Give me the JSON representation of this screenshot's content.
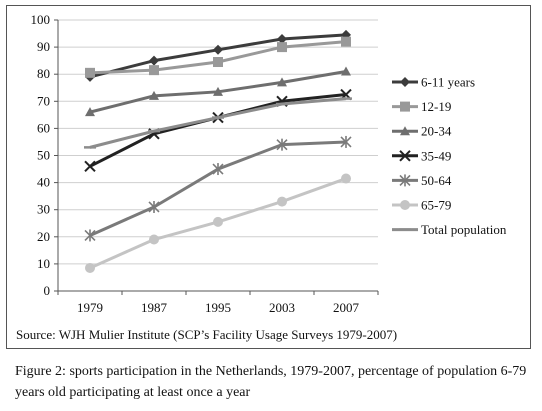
{
  "chart_data": {
    "type": "line",
    "x": [
      "1979",
      "1987",
      "1995",
      "2003",
      "2007"
    ],
    "ylim": [
      0,
      100
    ],
    "yticks": [
      "0",
      "10",
      "20",
      "30",
      "40",
      "50",
      "60",
      "70",
      "80",
      "90",
      "100"
    ],
    "grid": true,
    "legend_position": "right",
    "series": [
      {
        "name": "6-11 years",
        "values": [
          79,
          85,
          89,
          93,
          94.5
        ],
        "color": "#3c3c3c",
        "marker": "diamond"
      },
      {
        "name": "12-19",
        "values": [
          80.5,
          81.5,
          84.5,
          90,
          92
        ],
        "color": "#999999",
        "marker": "square"
      },
      {
        "name": "20-34",
        "values": [
          66,
          72,
          73.5,
          77,
          81
        ],
        "color": "#6e6e6e",
        "marker": "triangle"
      },
      {
        "name": "35-49",
        "values": [
          46,
          58,
          64,
          70,
          72.5
        ],
        "color": "#222222",
        "marker": "x"
      },
      {
        "name": "50-64",
        "values": [
          20.5,
          31,
          45,
          54,
          55
        ],
        "color": "#7a7a7a",
        "marker": "star"
      },
      {
        "name": "65-79",
        "values": [
          8.5,
          19,
          25.5,
          33,
          41.5
        ],
        "color": "#c4c4c4",
        "marker": "circle"
      },
      {
        "name": "Total population",
        "values": [
          53,
          59,
          64,
          69,
          71
        ],
        "color": "#8c8c8c",
        "marker": "dash"
      }
    ]
  },
  "source": "Source: WJH Mulier Institute (SCP’s Facility Usage Surveys 1979-2007)",
  "caption": "Figure 2: sports participation in the Netherlands, 1979-2007, percentage of population 6-79 years old participating at least once a year"
}
